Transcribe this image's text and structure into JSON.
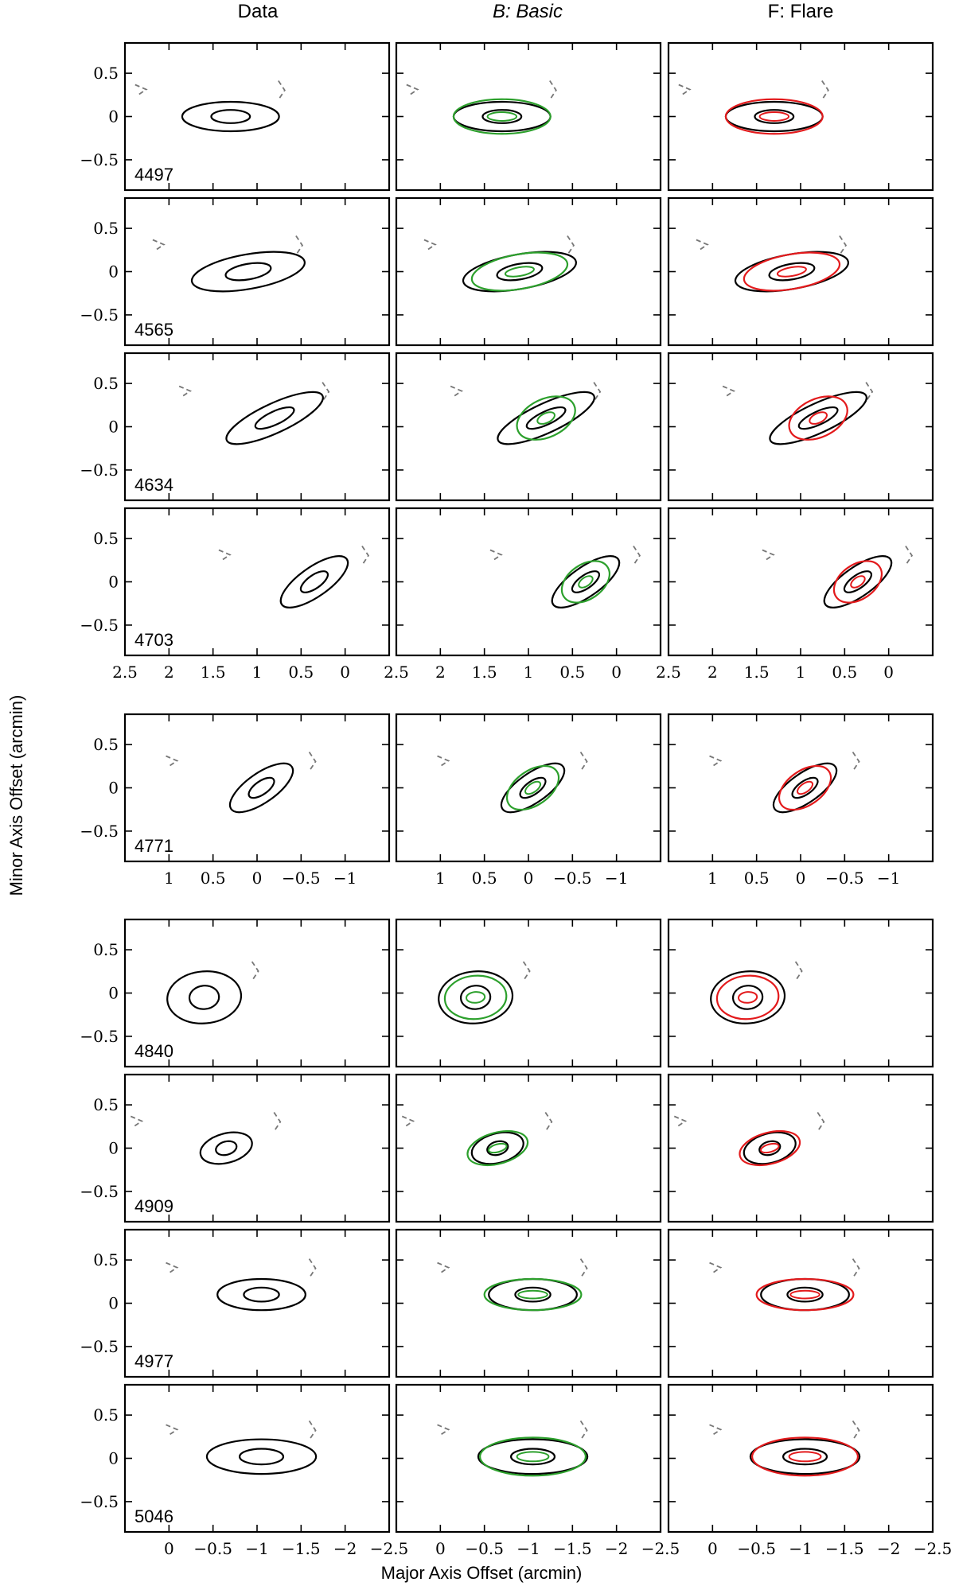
{
  "figure": {
    "column_titles": [
      "Data",
      "B: Basic",
      "F: Flare"
    ],
    "xlabel": "Major Axis Offset (arcmin)",
    "ylabel": "Minor Axis Offset (arcmin)"
  },
  "colors": {
    "data": "#000000",
    "negative": "#777777",
    "basic": "#2ca02c",
    "flare": "#e31a1c",
    "frame": "#000000"
  },
  "chart_data": {
    "type": "contour",
    "ylim": [
      -0.85,
      0.85
    ],
    "yticks": [
      0.5,
      0,
      -0.5
    ],
    "ytick_labels": [
      "0.5",
      "0",
      "−0.5"
    ],
    "groups": [
      {
        "xlim": [
          2.5,
          -0.5
        ],
        "xticks": [
          2.5,
          2,
          1.5,
          1,
          0.5,
          0
        ],
        "xtick_labels": [
          "2.5",
          "2",
          "1.5",
          "1",
          "0.5",
          "0"
        ],
        "rows": [
          {
            "label": "4497",
            "center": [
              1.3,
              0.0
            ],
            "half_axes": [
              0.55,
              0.17
            ],
            "angle_deg": 0,
            "model_half_axes": [
              0.55,
              0.2
            ]
          },
          {
            "label": "4565",
            "center": [
              1.1,
              0.0
            ],
            "half_axes": [
              0.65,
              0.2
            ],
            "angle_deg": -10,
            "model_half_axes": [
              0.55,
              0.2
            ]
          },
          {
            "label": "4634",
            "center": [
              0.8,
              0.1
            ],
            "half_axes": [
              0.6,
              0.17
            ],
            "angle_deg": -25,
            "model_half_axes": [
              0.35,
              0.22
            ]
          },
          {
            "label": "4703",
            "center": [
              0.35,
              0.0
            ],
            "half_axes": [
              0.45,
              0.17
            ],
            "angle_deg": -35,
            "model_half_axes": [
              0.3,
              0.2
            ]
          }
        ]
      },
      {
        "xlim": [
          1.5,
          -1.5
        ],
        "xticks": [
          1,
          0.5,
          0,
          -0.5,
          -1
        ],
        "xtick_labels": [
          "1",
          "0.5",
          "0",
          "−0.5",
          "−1"
        ],
        "rows": [
          {
            "label": "4771",
            "center": [
              -0.05,
              0.0
            ],
            "half_axes": [
              0.42,
              0.17
            ],
            "angle_deg": -35,
            "model_half_axes": [
              0.33,
              0.2
            ]
          }
        ]
      },
      {
        "xlim": [
          0.5,
          -2.5
        ],
        "xticks": [
          0,
          -0.5,
          -1,
          -1.5,
          -2,
          -2.5
        ],
        "xtick_labels": [
          "0",
          "−0.5",
          "−1",
          "−1.5",
          "−2",
          "−2.5"
        ],
        "rows": [
          {
            "label": "4840",
            "center": [
              -0.4,
              -0.05
            ],
            "half_axes": [
              0.42,
              0.3
            ],
            "angle_deg": -5,
            "model_half_axes": [
              0.35,
              0.25
            ]
          },
          {
            "label": "4909",
            "center": [
              -0.65,
              0.0
            ],
            "half_axes": [
              0.3,
              0.17
            ],
            "angle_deg": -15,
            "model_half_axes": [
              0.35,
              0.18
            ]
          },
          {
            "label": "4977",
            "center": [
              -1.05,
              0.1
            ],
            "half_axes": [
              0.5,
              0.18
            ],
            "angle_deg": 0,
            "model_half_axes": [
              0.55,
              0.18
            ]
          },
          {
            "label": "5046",
            "center": [
              -1.05,
              0.02
            ],
            "half_axes": [
              0.62,
              0.2
            ],
            "angle_deg": 0,
            "model_half_axes": [
              0.6,
              0.22
            ]
          }
        ]
      }
    ]
  }
}
